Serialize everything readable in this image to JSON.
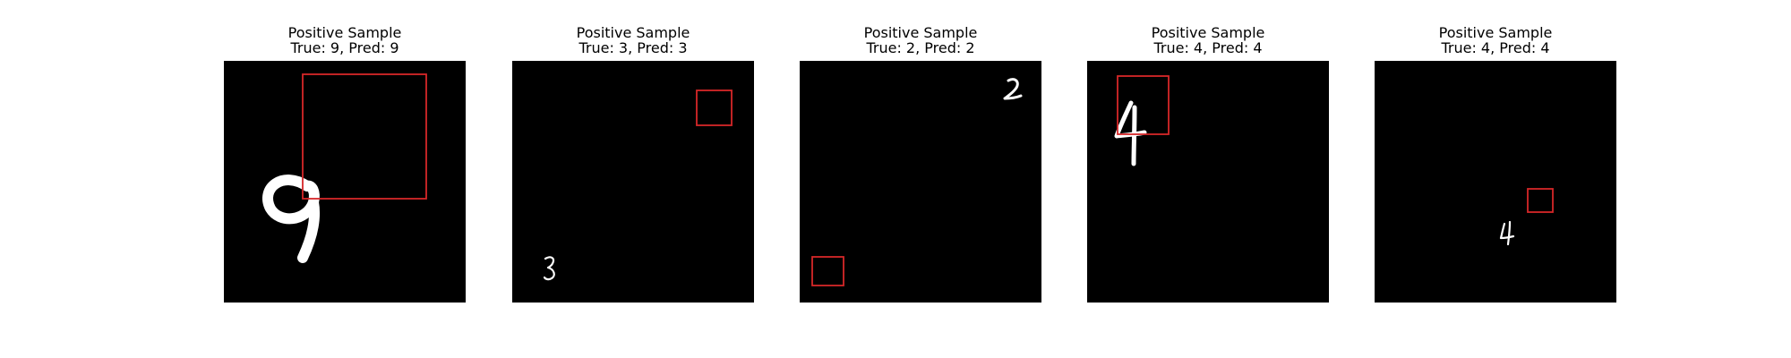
{
  "figure": {
    "panels": [
      {
        "title": "Positive Sample",
        "subtitle": "True: 9, Pred: 9",
        "digit": "9"
      },
      {
        "title": "Positive Sample",
        "subtitle": "True: 3, Pred: 3",
        "digit": "3"
      },
      {
        "title": "Positive Sample",
        "subtitle": "True: 2, Pred: 2",
        "digit": "2"
      },
      {
        "title": "Positive Sample",
        "subtitle": "True: 4, Pred: 4",
        "digit": "4"
      },
      {
        "title": "Positive Sample",
        "subtitle": "True: 4, Pred: 4",
        "digit": "4"
      }
    ],
    "colors": {
      "background": "#000000",
      "digit": "#ffffff",
      "bbox": "#d62728"
    }
  }
}
